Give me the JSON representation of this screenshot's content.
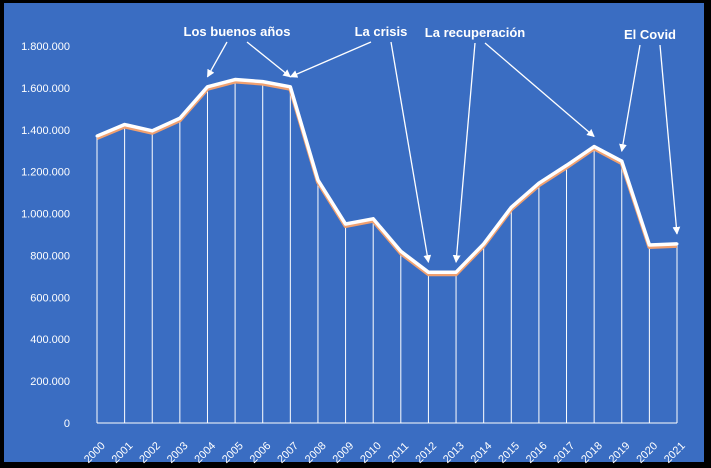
{
  "chart_data": {
    "type": "line",
    "title": "",
    "xlabel": "",
    "ylabel": "",
    "x": [
      "2000",
      "2001",
      "2002",
      "2003",
      "2004",
      "2005",
      "2006",
      "2007",
      "2008",
      "2009",
      "2010",
      "2011",
      "2012",
      "2013",
      "2014",
      "2015",
      "2016",
      "2017",
      "2018",
      "2019",
      "2020",
      "2021"
    ],
    "series": [
      {
        "name": "",
        "values": [
          1370000,
          1425000,
          1395000,
          1455000,
          1605000,
          1640000,
          1630000,
          1605000,
          1160000,
          950000,
          975000,
          820000,
          720000,
          720000,
          855000,
          1030000,
          1145000,
          1230000,
          1320000,
          1250000,
          850000,
          855000
        ]
      }
    ],
    "ylim": [
      0,
      1800000
    ],
    "yticks": [
      "0",
      "200.000",
      "400.000",
      "600.000",
      "800.000",
      "1.000.000",
      "1.200.000",
      "1.400.000",
      "1.600.000",
      "1.800.000"
    ],
    "yticks_values": [
      0,
      200000,
      400000,
      600000,
      800000,
      1000000,
      1200000,
      1400000,
      1600000,
      1800000
    ],
    "drop_lines": true,
    "colors": {
      "background": "#3a6dc2",
      "frame": "#000000",
      "line": "#ffffff",
      "line_shadow": "#f0a070",
      "text": "#ffffff"
    },
    "annotations": [
      {
        "label": "Los buenos años",
        "targets": [
          "2004",
          "2007"
        ]
      },
      {
        "label": "La crisis",
        "targets": [
          "2007",
          "2012"
        ]
      },
      {
        "label": "La recuperación",
        "targets": [
          "2013",
          "2018"
        ]
      },
      {
        "label": "El Covid",
        "targets": [
          "2019",
          "2021"
        ]
      }
    ]
  }
}
